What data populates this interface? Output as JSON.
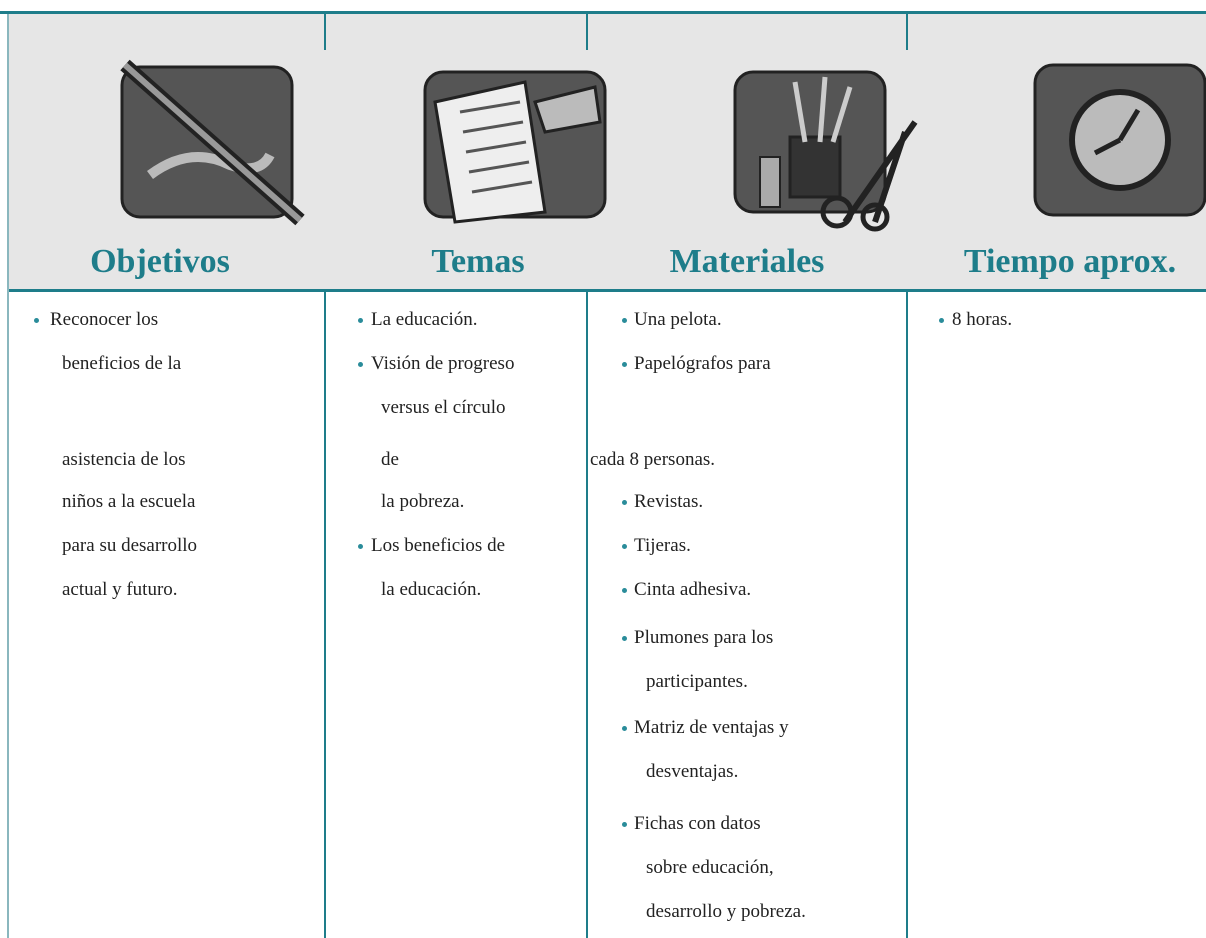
{
  "columns": [
    {
      "header": "Objetivos",
      "items": [
        {
          "text": "Reconocer los",
          "bullet": true
        },
        {
          "text": "beneficios de la",
          "bullet": false
        },
        {
          "text": "asistencia de los",
          "bullet": false
        },
        {
          "text": "niños a la escuela",
          "bullet": false
        },
        {
          "text": "para su desarrollo",
          "bullet": false
        },
        {
          "text": "actual y futuro.",
          "bullet": false
        }
      ]
    },
    {
      "header": "Temas",
      "items": [
        {
          "text": "La educación.",
          "bullet": true
        },
        {
          "text": "Visión de progreso",
          "bullet": true
        },
        {
          "text": "versus el círculo",
          "bullet": false
        },
        {
          "text": "de",
          "bullet": false
        },
        {
          "text": "la pobreza.",
          "bullet": false
        },
        {
          "text": "Los beneficios de",
          "bullet": true
        },
        {
          "text": "la educación.",
          "bullet": false
        }
      ]
    },
    {
      "header": "Materiales",
      "items": [
        {
          "text": "Una pelota.",
          "bullet": true
        },
        {
          "text": "Papelógrafos para",
          "bullet": true
        },
        {
          "text": "cada 8 personas.",
          "bullet": false
        },
        {
          "text": "Revistas.",
          "bullet": true
        },
        {
          "text": "Tijeras.",
          "bullet": true
        },
        {
          "text": "Cinta adhesiva.",
          "bullet": true
        },
        {
          "text": "Plumones para los",
          "bullet": true
        },
        {
          "text": "participantes.",
          "bullet": false
        },
        {
          "text": "Matriz de ventajas y",
          "bullet": true
        },
        {
          "text": "desventajas.",
          "bullet": false
        },
        {
          "text": "Fichas con datos",
          "bullet": true
        },
        {
          "text": "sobre educación,",
          "bullet": false
        },
        {
          "text": "desarrollo y pobreza.",
          "bullet": false
        }
      ]
    },
    {
      "header": "Tiempo aprox.",
      "items": [
        {
          "text": "8 horas.",
          "bullet": true
        }
      ]
    }
  ]
}
